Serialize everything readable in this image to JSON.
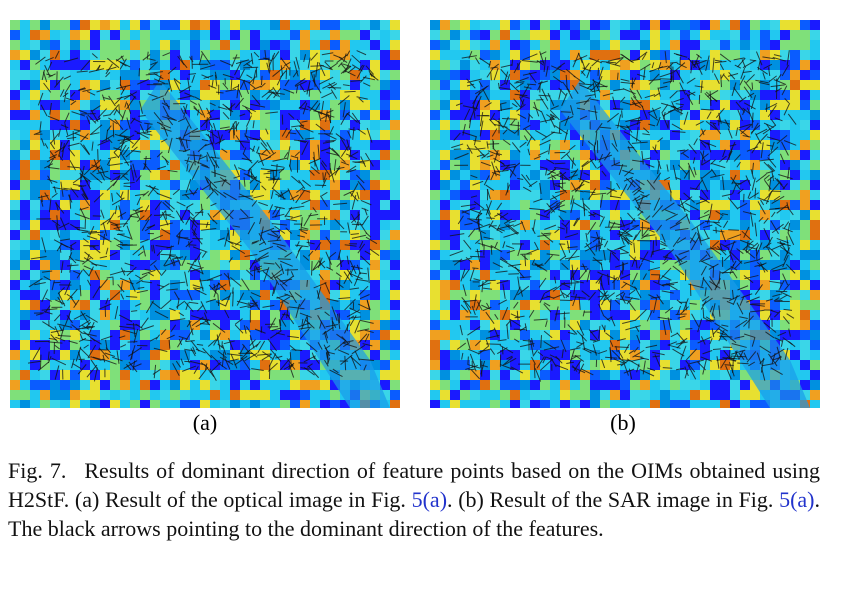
{
  "figure": {
    "subfigures": [
      {
        "label": "(a)"
      },
      {
        "label": "(b)"
      }
    ],
    "caption": {
      "label": "Fig. 7.",
      "segments": [
        {
          "text": "Results of dominant direction of feature points based on the OIMs obtained using H2StF. (a) Result of the optical image in Fig. "
        },
        {
          "text": "5(a)",
          "link": true
        },
        {
          "text": ". (b) Result of the SAR image in Fig. "
        },
        {
          "text": "5(a)",
          "link": true
        },
        {
          "text": ". The black arrows pointing to the dominant direction of the features."
        }
      ]
    }
  }
}
